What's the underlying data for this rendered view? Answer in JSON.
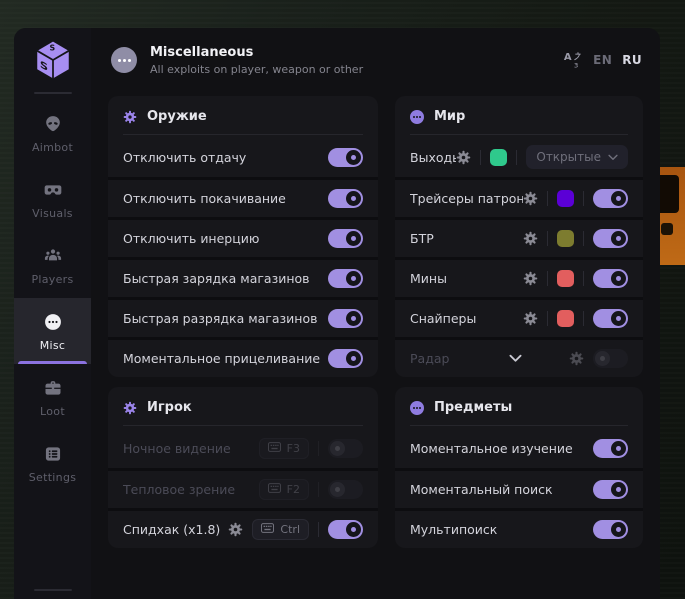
{
  "colors": {
    "accent": "#a18fe2",
    "window_bg": "#111114",
    "card_bg": "#17171b",
    "swatch_green": "#2fc98c",
    "swatch_purple": "#5b00d6",
    "swatch_olive": "#7d7c2f",
    "swatch_red": "#e25e5e"
  },
  "header": {
    "title": "Miscellaneous",
    "subtitle": "All exploits on player, weapon or other",
    "languages": [
      {
        "label": "EN",
        "active": false
      },
      {
        "label": "RU",
        "active": true
      }
    ]
  },
  "sidebar": {
    "items": [
      {
        "id": "aimbot",
        "label": "Aimbot",
        "icon": "alien-icon",
        "active": false
      },
      {
        "id": "visuals",
        "label": "Visuals",
        "icon": "vr-goggles-icon",
        "active": false
      },
      {
        "id": "players",
        "label": "Players",
        "icon": "players-icon",
        "active": false
      },
      {
        "id": "misc",
        "label": "Misc",
        "icon": "ellipsis-circle-icon",
        "active": true
      },
      {
        "id": "loot",
        "label": "Loot",
        "icon": "briefcase-icon",
        "active": false
      },
      {
        "id": "settings",
        "label": "Settings",
        "icon": "list-icon",
        "active": false
      }
    ]
  },
  "sections": [
    {
      "id": "weapon",
      "column": "left",
      "title": "Оружие",
      "icon": "gear-icon",
      "rows": [
        {
          "label": "Отключить отдачу",
          "toggle": true
        },
        {
          "label": "Отключить покачивание",
          "toggle": true
        },
        {
          "label": "Отключить инерцию",
          "toggle": true
        },
        {
          "label": "Быстрая зарядка магазинов",
          "toggle": true
        },
        {
          "label": "Быстрая разрядка магазинов",
          "toggle": true
        },
        {
          "label": "Моментальное прицеливание",
          "toggle": true
        }
      ]
    },
    {
      "id": "player",
      "column": "left",
      "title": "Игрок",
      "icon": "gear-icon",
      "rows": [
        {
          "label": "Ночное видение",
          "hotkey": "F3",
          "toggle": false,
          "dimmed": true
        },
        {
          "label": "Тепловое зрение",
          "hotkey": "F2",
          "toggle": false,
          "dimmed": true
        },
        {
          "label": "Спидхак (x1.8)",
          "gear": true,
          "hotkey": "Ctrl",
          "toggle": true
        }
      ]
    },
    {
      "id": "world",
      "column": "right",
      "title": "Мир",
      "icon": "dots-badge-icon",
      "rows": [
        {
          "label": "Выходы",
          "gear": true,
          "swatch": "#2fc98c",
          "dropdown": "Открытые"
        },
        {
          "label": "Трейсеры патронов",
          "gear": true,
          "swatch": "#5b00d6",
          "toggle": true
        },
        {
          "label": "БТР",
          "gear": true,
          "swatch": "#7d7c2f",
          "toggle": true
        },
        {
          "label": "Мины",
          "gear": true,
          "swatch": "#e25e5e",
          "toggle": true
        },
        {
          "label": "Снайперы",
          "gear": true,
          "swatch": "#e25e5e",
          "toggle": true
        },
        {
          "label": "Радар",
          "expandable": true,
          "gear": true,
          "toggle": false,
          "dimmed": true
        }
      ]
    },
    {
      "id": "items",
      "column": "right",
      "title": "Предметы",
      "icon": "dots-badge-icon",
      "rows": [
        {
          "label": "Моментальное изучение",
          "toggle": true
        },
        {
          "label": "Моментальный поиск",
          "toggle": true
        },
        {
          "label": "Мультипоиск",
          "toggle": true
        }
      ]
    }
  ]
}
